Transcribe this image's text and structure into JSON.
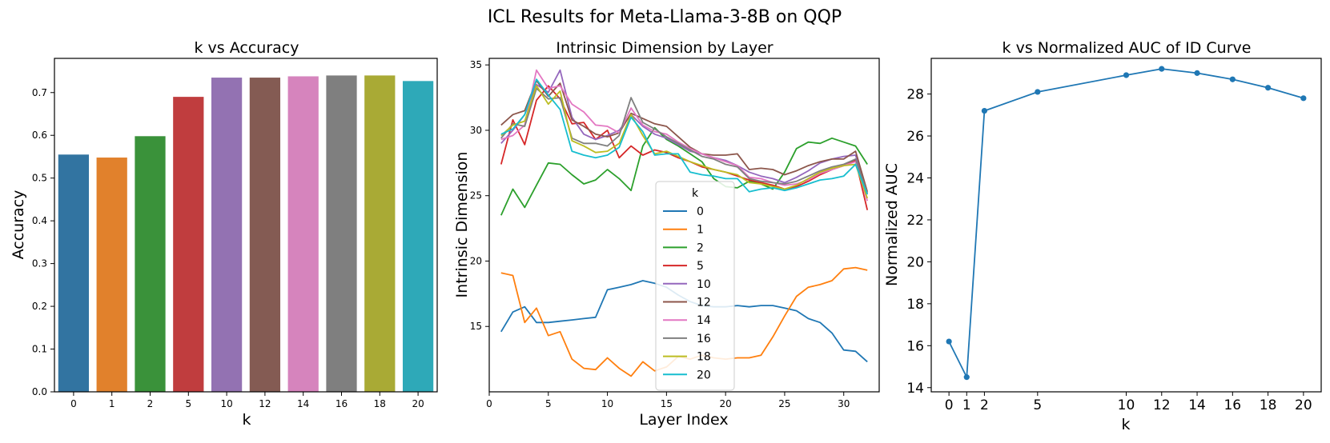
{
  "suptitle": "ICL Results for Meta-Llama-3-8B on QQP",
  "chart_data": [
    {
      "type": "bar",
      "title": "k vs Accuracy",
      "xlabel": "k",
      "ylabel": "Accuracy",
      "categories": [
        "0",
        "1",
        "2",
        "5",
        "10",
        "12",
        "14",
        "16",
        "18",
        "20"
      ],
      "values": [
        0.555,
        0.548,
        0.598,
        0.69,
        0.735,
        0.735,
        0.738,
        0.74,
        0.74,
        0.727
      ],
      "colors": [
        "#3274a1",
        "#e1812c",
        "#3a923a",
        "#c03d3e",
        "#9372b2",
        "#845b53",
        "#d684bd",
        "#7f7f7f",
        "#a9aa35",
        "#2ea9b8"
      ],
      "ylim": [
        0,
        0.78
      ],
      "yticks": [
        "0.0",
        "0.1",
        "0.2",
        "0.3",
        "0.4",
        "0.5",
        "0.6",
        "0.7"
      ]
    },
    {
      "type": "line",
      "title": "Intrinsic Dimension by Layer",
      "xlabel": "Layer Index",
      "ylabel": "Intrinsic Dimension",
      "xlim": [
        0,
        33
      ],
      "ylim": [
        10,
        35.5
      ],
      "xticks": [
        "0",
        "5",
        "10",
        "15",
        "20",
        "25",
        "30"
      ],
      "yticks": [
        "15",
        "20",
        "25",
        "30",
        "35"
      ],
      "legend_title": "k",
      "legend_position": "center",
      "x": [
        1,
        2,
        3,
        4,
        5,
        6,
        7,
        8,
        9,
        10,
        11,
        12,
        13,
        14,
        15,
        16,
        17,
        18,
        19,
        20,
        21,
        22,
        23,
        24,
        25,
        26,
        27,
        28,
        29,
        30,
        31,
        32
      ],
      "series": [
        {
          "name": "0",
          "color": "#1f77b4",
          "values": [
            14.6,
            16.1,
            16.5,
            15.3,
            15.3,
            15.4,
            15.5,
            15.6,
            15.7,
            17.8,
            18.0,
            18.2,
            18.5,
            18.3,
            18.0,
            17.4,
            16.9,
            16.6,
            16.5,
            16.5,
            16.6,
            16.5,
            16.6,
            16.6,
            16.4,
            16.2,
            15.6,
            15.3,
            14.5,
            13.2,
            13.1,
            12.3
          ]
        },
        {
          "name": "1",
          "color": "#ff7f0e",
          "values": [
            19.1,
            18.9,
            15.3,
            16.4,
            14.3,
            14.6,
            12.5,
            11.8,
            11.7,
            12.6,
            11.8,
            11.2,
            12.3,
            11.6,
            11.9,
            12.7,
            12.5,
            12.8,
            12.6,
            12.5,
            12.6,
            12.6,
            12.8,
            14.2,
            15.8,
            17.3,
            18.0,
            18.2,
            18.5,
            19.4,
            19.5,
            19.3
          ]
        },
        {
          "name": "2",
          "color": "#2ca02c",
          "values": [
            23.5,
            25.5,
            24.1,
            25.8,
            27.5,
            27.4,
            26.6,
            25.9,
            26.2,
            27.0,
            26.3,
            25.4,
            28.8,
            30.2,
            29.3,
            28.8,
            28.2,
            27.6,
            26.3,
            25.7,
            25.6,
            26.1,
            25.9,
            25.5,
            26.8,
            28.6,
            29.1,
            29.0,
            29.4,
            29.1,
            28.8,
            27.4
          ]
        },
        {
          "name": "5",
          "color": "#d62728",
          "values": [
            27.4,
            30.8,
            28.9,
            32.3,
            33.4,
            32.4,
            30.5,
            30.6,
            29.3,
            30.0,
            27.9,
            28.8,
            28.1,
            28.5,
            28.3,
            27.9,
            27.6,
            27.2,
            27.0,
            26.8,
            26.5,
            26.2,
            26.0,
            25.8,
            25.5,
            25.7,
            26.1,
            26.6,
            27.0,
            27.3,
            27.7,
            23.9
          ]
        },
        {
          "name": "10",
          "color": "#9467bd",
          "values": [
            29.0,
            30.0,
            31.2,
            33.5,
            32.9,
            34.6,
            31.0,
            29.7,
            29.3,
            29.6,
            30.0,
            31.2,
            30.3,
            29.7,
            29.4,
            28.9,
            28.4,
            28.2,
            27.9,
            27.7,
            27.3,
            26.8,
            26.5,
            26.3,
            26.0,
            26.4,
            26.9,
            27.5,
            27.8,
            28.0,
            28.1,
            25.1
          ]
        },
        {
          "name": "12",
          "color": "#8c564b",
          "values": [
            30.4,
            31.2,
            31.5,
            33.8,
            32.6,
            33.6,
            30.8,
            30.3,
            29.7,
            29.5,
            29.8,
            31.3,
            30.9,
            30.5,
            30.3,
            29.5,
            28.7,
            28.2,
            28.1,
            28.1,
            28.2,
            27.0,
            27.1,
            27.0,
            26.6,
            26.9,
            27.3,
            27.6,
            27.8,
            27.8,
            28.4,
            25.3
          ]
        },
        {
          "name": "14",
          "color": "#e377c2",
          "values": [
            29.3,
            29.6,
            30.4,
            34.6,
            33.2,
            33.4,
            32.0,
            31.4,
            30.4,
            30.3,
            29.8,
            31.7,
            30.4,
            29.9,
            29.7,
            29.1,
            28.6,
            28.2,
            27.9,
            27.6,
            27.3,
            26.4,
            26.3,
            26.0,
            25.8,
            25.9,
            26.2,
            26.7,
            27.0,
            27.3,
            27.6,
            24.6
          ]
        },
        {
          "name": "16",
          "color": "#7f7f7f",
          "values": [
            29.4,
            30.5,
            30.3,
            33.2,
            32.4,
            32.5,
            29.4,
            29.0,
            29.0,
            28.8,
            29.6,
            32.5,
            30.6,
            30.1,
            29.5,
            29.0,
            28.5,
            28.0,
            27.8,
            27.4,
            27.2,
            26.3,
            26.1,
            26.0,
            25.9,
            26.1,
            26.5,
            26.9,
            27.2,
            27.4,
            27.8,
            25.2
          ]
        },
        {
          "name": "18",
          "color": "#bcbd22",
          "values": [
            29.6,
            30.4,
            30.7,
            33.4,
            32.0,
            33.0,
            29.2,
            28.8,
            28.3,
            28.4,
            29.0,
            31.2,
            29.6,
            28.2,
            28.4,
            28.0,
            27.6,
            27.3,
            27.0,
            26.8,
            26.6,
            26.0,
            25.9,
            25.7,
            25.5,
            25.8,
            26.3,
            26.8,
            27.1,
            27.3,
            27.4,
            24.8
          ]
        },
        {
          "name": "20",
          "color": "#17becf",
          "values": [
            29.7,
            30.1,
            31.2,
            33.9,
            32.7,
            31.6,
            28.4,
            28.1,
            27.9,
            28.1,
            28.7,
            31.0,
            29.9,
            28.1,
            28.2,
            28.2,
            26.8,
            26.6,
            26.5,
            26.3,
            26.3,
            25.3,
            25.5,
            25.6,
            25.4,
            25.6,
            25.9,
            26.2,
            26.3,
            26.5,
            27.4,
            25.1
          ]
        }
      ]
    },
    {
      "type": "line",
      "title": "k vs Normalized AUC of ID Curve",
      "xlabel": "k",
      "ylabel": "Normalized AUC",
      "color": "#1f77b4",
      "marker": "circle",
      "x": [
        0,
        1,
        2,
        5,
        10,
        12,
        14,
        16,
        18,
        20
      ],
      "values": [
        16.2,
        14.5,
        27.2,
        28.1,
        28.9,
        29.2,
        29.0,
        28.7,
        28.3,
        27.8
      ],
      "xlim": [
        -1,
        21
      ],
      "ylim": [
        13.8,
        29.7
      ],
      "xticks": [
        "0",
        "1",
        "2",
        "5",
        "10",
        "12",
        "14",
        "16",
        "18",
        "20"
      ],
      "yticks": [
        "14",
        "16",
        "18",
        "20",
        "22",
        "24",
        "26",
        "28"
      ]
    }
  ]
}
